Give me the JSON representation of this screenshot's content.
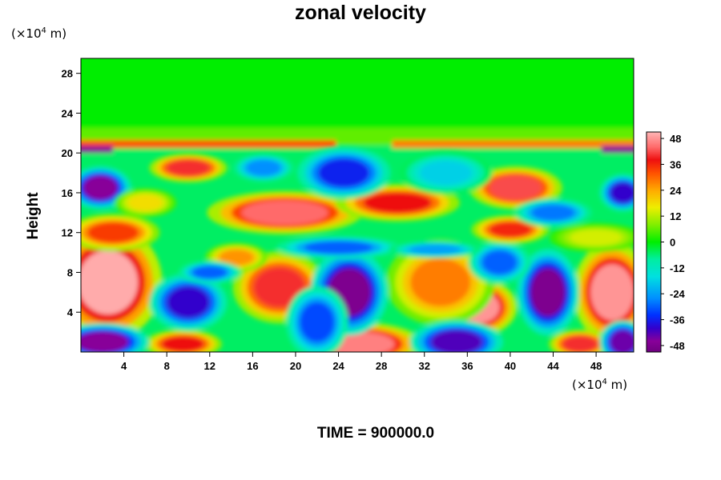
{
  "chart_data": {
    "type": "heatmap",
    "title": "zonal velocity",
    "ylabel": "Height",
    "x_unit_prefix": "(×10",
    "x_unit_exp": "4",
    "x_unit_suffix": " m)",
    "y_unit_prefix": "(×10",
    "y_unit_exp": "4",
    "y_unit_suffix": " m)",
    "xlim": [
      0,
      51.5
    ],
    "ylim": [
      0,
      29.5
    ],
    "x_ticks": [
      4,
      8,
      12,
      16,
      20,
      24,
      28,
      32,
      36,
      40,
      44,
      48
    ],
    "y_ticks": [
      4,
      8,
      12,
      16,
      20,
      24,
      28
    ],
    "colorbar": {
      "ticks": [
        48,
        36,
        24,
        12,
        0,
        -12,
        -24,
        -36,
        -48
      ],
      "range": [
        -51,
        51
      ]
    },
    "footer": "TIME = 900000.0",
    "colors": {
      "high": "#ffb6b6",
      "mid_high": "#ff2020",
      "neutral": "#00ee00",
      "mid_low": "#0030ff",
      "low": "#880099"
    },
    "blobs": [
      {
        "x": 2.5,
        "y": 7.0,
        "rx": 3.5,
        "ry": 4.0,
        "v": 50
      },
      {
        "x": 49.5,
        "y": 6.0,
        "rx": 2.5,
        "ry": 3.5,
        "v": 48
      },
      {
        "x": 37.0,
        "y": 4.5,
        "rx": 2.5,
        "ry": 2.0,
        "v": 48
      },
      {
        "x": 26.0,
        "y": 0.8,
        "rx": 4.0,
        "ry": 1.5,
        "v": 46
      },
      {
        "x": 9.5,
        "y": 0.8,
        "rx": 2.5,
        "ry": 1.0,
        "v": 38
      },
      {
        "x": 46.5,
        "y": 0.8,
        "rx": 2.0,
        "ry": 1.0,
        "v": 40
      },
      {
        "x": 18.5,
        "y": 6.5,
        "rx": 3.0,
        "ry": 2.5,
        "v": 40
      },
      {
        "x": 33.5,
        "y": 7.0,
        "rx": 3.5,
        "ry": 3.0,
        "v": 28
      },
      {
        "x": 25.0,
        "y": 6.0,
        "rx": 2.5,
        "ry": 3.0,
        "v": -48
      },
      {
        "x": 43.5,
        "y": 6.0,
        "rx": 2.0,
        "ry": 3.0,
        "v": -48
      },
      {
        "x": 10.0,
        "y": 5.0,
        "rx": 2.5,
        "ry": 2.0,
        "v": -40
      },
      {
        "x": 2.0,
        "y": 1.0,
        "rx": 3.0,
        "ry": 1.3,
        "v": -46
      },
      {
        "x": 35.0,
        "y": 1.0,
        "rx": 3.0,
        "ry": 1.5,
        "v": -42
      },
      {
        "x": 50.5,
        "y": 1.0,
        "rx": 1.5,
        "ry": 1.5,
        "v": -44
      },
      {
        "x": 22.0,
        "y": 3.0,
        "rx": 2.0,
        "ry": 2.5,
        "v": -32
      },
      {
        "x": 39.0,
        "y": 9.0,
        "rx": 2.0,
        "ry": 1.5,
        "v": -30
      },
      {
        "x": 19.0,
        "y": 14.0,
        "rx": 5.0,
        "ry": 1.5,
        "v": 44
      },
      {
        "x": 29.5,
        "y": 15.0,
        "rx": 4.0,
        "ry": 1.3,
        "v": 38
      },
      {
        "x": 40.5,
        "y": 16.5,
        "rx": 3.0,
        "ry": 1.5,
        "v": 42
      },
      {
        "x": 10.0,
        "y": 18.5,
        "rx": 2.5,
        "ry": 1.0,
        "v": 40
      },
      {
        "x": 3.0,
        "y": 12.0,
        "rx": 3.0,
        "ry": 1.3,
        "v": 34
      },
      {
        "x": 40.0,
        "y": 12.3,
        "rx": 2.5,
        "ry": 1.0,
        "v": 36
      },
      {
        "x": 14.5,
        "y": 9.5,
        "rx": 2.0,
        "ry": 1.0,
        "v": 26
      },
      {
        "x": 1.8,
        "y": 16.5,
        "rx": 2.0,
        "ry": 1.5,
        "v": -46
      },
      {
        "x": 50.5,
        "y": 16.0,
        "rx": 1.5,
        "ry": 1.3,
        "v": -40
      },
      {
        "x": 24.5,
        "y": 18.0,
        "rx": 3.0,
        "ry": 1.8,
        "v": -36
      },
      {
        "x": 17.0,
        "y": 18.5,
        "rx": 2.0,
        "ry": 1.0,
        "v": -26
      },
      {
        "x": 34.0,
        "y": 18.0,
        "rx": 3.0,
        "ry": 1.5,
        "v": -18
      },
      {
        "x": 44.0,
        "y": 14.0,
        "rx": 2.5,
        "ry": 1.0,
        "v": -28
      },
      {
        "x": 24.0,
        "y": 10.5,
        "rx": 4.0,
        "ry": 0.8,
        "v": -30
      },
      {
        "x": 12.0,
        "y": 8.0,
        "rx": 2.0,
        "ry": 0.8,
        "v": -30
      },
      {
        "x": 33.0,
        "y": 10.3,
        "rx": 3.0,
        "ry": 0.6,
        "v": -24
      },
      {
        "x": 6.0,
        "y": 15.0,
        "rx": 2.0,
        "ry": 1.0,
        "v": 18
      },
      {
        "x": 48.0,
        "y": 11.5,
        "rx": 3.0,
        "ry": 1.0,
        "v": 14
      }
    ]
  }
}
